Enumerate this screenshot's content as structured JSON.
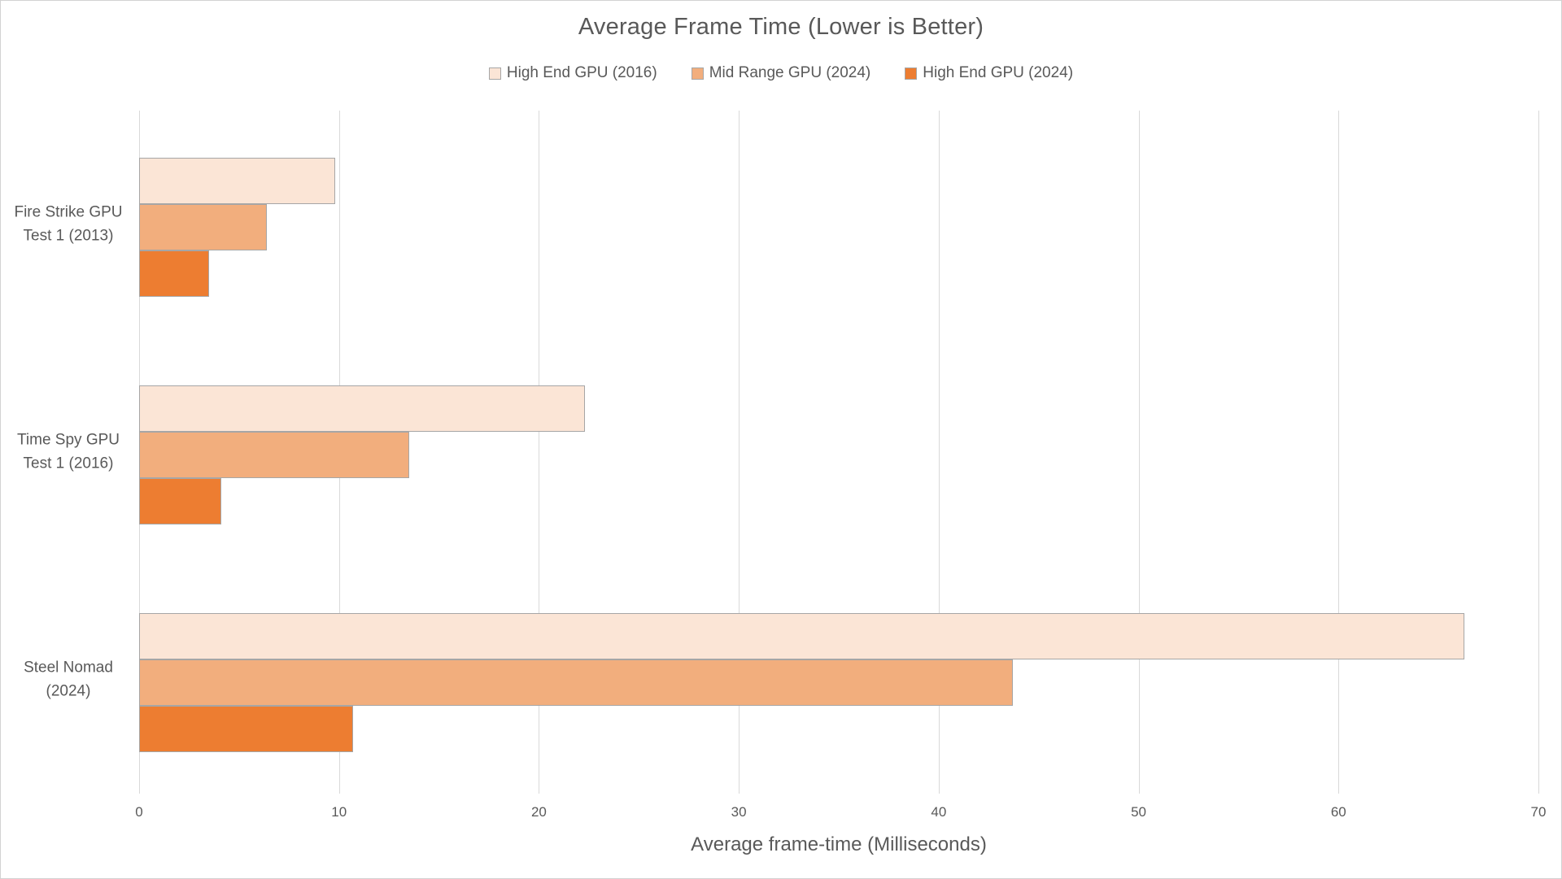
{
  "chart": {
    "title": "Average Frame Time (Lower is Better)",
    "xlabel": "Average frame-time (Milliseconds)"
  },
  "chart_data": {
    "type": "bar",
    "orientation": "horizontal",
    "title": "Average Frame Time (Lower is Better)",
    "xlabel": "Average frame-time (Milliseconds)",
    "categories": [
      "Fire Strike GPU\nTest 1 (2013)",
      "Time Spy GPU\nTest 1 (2016)",
      "Steel Nomad\n(2024)"
    ],
    "series": [
      {
        "name": "High End GPU (2016)",
        "color": "#FBE5D6",
        "values": [
          9.8,
          22.3,
          66.3
        ]
      },
      {
        "name": "Mid Range GPU (2024)",
        "color": "#F2AE7D",
        "values": [
          6.4,
          13.5,
          43.7
        ]
      },
      {
        "name": "High End GPU (2024)",
        "color": "#ED7D31",
        "values": [
          3.5,
          4.1,
          10.7
        ]
      }
    ],
    "xlim": [
      0,
      70
    ],
    "xticks": [
      0,
      10,
      20,
      30,
      40,
      50,
      60,
      70
    ],
    "grid": true,
    "legend_position": "top",
    "colors": {
      "text": "#595959",
      "gridline": "#D9D9D9",
      "bar_border": "#A6A6A6",
      "chart_border": "#D2D2D2",
      "background": "#FFFFFF"
    }
  }
}
